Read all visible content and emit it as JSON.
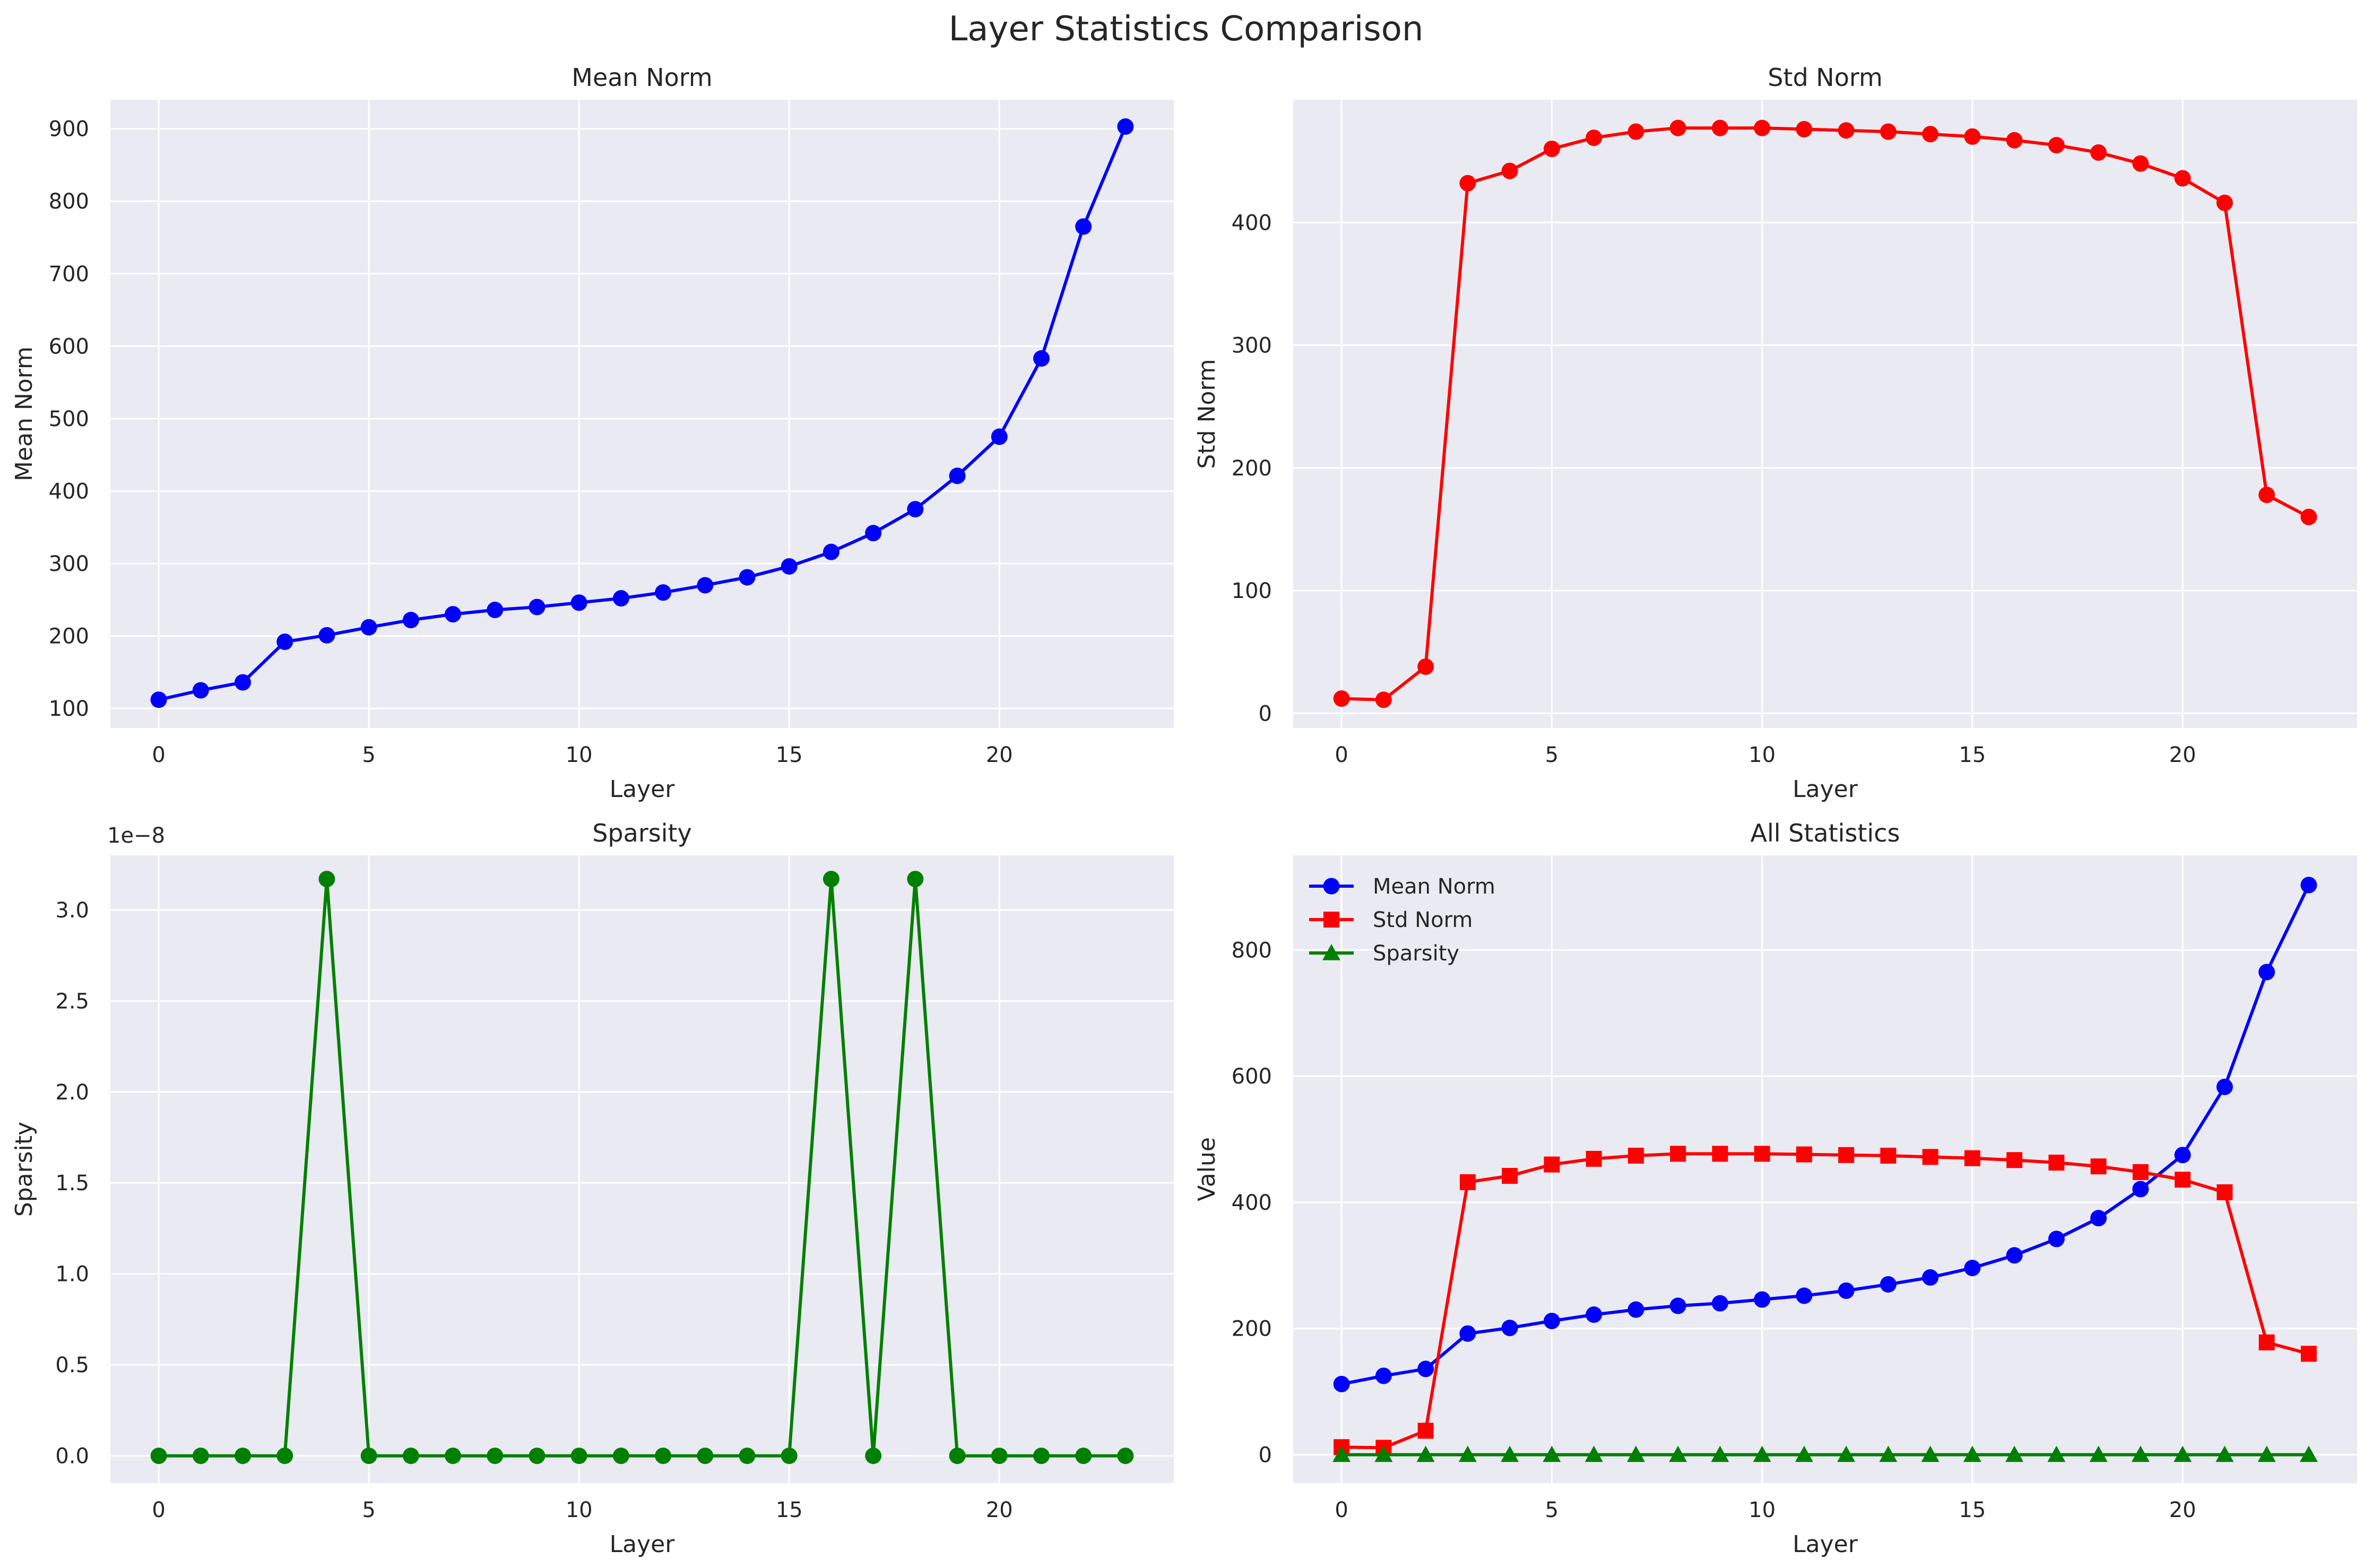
{
  "figure": {
    "title": "Layer Statistics Comparison"
  },
  "colors": {
    "blue": "#0000ff",
    "red": "#ff0000",
    "green": "#008000",
    "panel_bg": "#eaeaf2",
    "grid": "#ffffff"
  },
  "chart_data": [
    {
      "type": "line",
      "title": "Mean Norm",
      "xlabel": "Layer",
      "ylabel": "Mean Norm",
      "xlim": [
        -1.15,
        24.15
      ],
      "ylim": [
        73,
        940
      ],
      "xticks": [
        0,
        5,
        10,
        15,
        20
      ],
      "yticks": [
        100,
        200,
        300,
        400,
        500,
        600,
        700,
        800,
        900
      ],
      "ytick_labels": [
        "100",
        "200",
        "300",
        "400",
        "500",
        "600",
        "700",
        "800",
        "900"
      ],
      "grid": true,
      "series": [
        {
          "color": "#0000ff",
          "marker": "circle",
          "x": [
            0,
            1,
            2,
            3,
            4,
            5,
            6,
            7,
            8,
            9,
            10,
            11,
            12,
            13,
            14,
            15,
            16,
            17,
            18,
            19,
            20,
            21,
            22,
            23
          ],
          "y": [
            112,
            125,
            136,
            192,
            201,
            212,
            222,
            230,
            236,
            240,
            246,
            252,
            260,
            270,
            281,
            296,
            316,
            342,
            375,
            421,
            475,
            583,
            765,
            903
          ]
        }
      ]
    },
    {
      "type": "line",
      "title": "Std Norm",
      "xlabel": "Layer",
      "ylabel": "Std Norm",
      "xlim": [
        -1.15,
        24.15
      ],
      "ylim": [
        -12,
        500
      ],
      "xticks": [
        0,
        5,
        10,
        15,
        20
      ],
      "yticks": [
        0,
        100,
        200,
        300,
        400
      ],
      "ytick_labels": [
        "0",
        "100",
        "200",
        "300",
        "400"
      ],
      "grid": true,
      "series": [
        {
          "color": "#ff0000",
          "marker": "circle",
          "x": [
            0,
            1,
            2,
            3,
            4,
            5,
            6,
            7,
            8,
            9,
            10,
            11,
            12,
            13,
            14,
            15,
            16,
            17,
            18,
            19,
            20,
            21,
            22,
            23
          ],
          "y": [
            12,
            11,
            38,
            432,
            442,
            460,
            469,
            474,
            477,
            477,
            477,
            476,
            475,
            474,
            472,
            470,
            467,
            463,
            457,
            448,
            436,
            416,
            178,
            160
          ]
        }
      ]
    },
    {
      "type": "line",
      "title": "Sparsity",
      "xlabel": "Layer",
      "ylabel": "Sparsity",
      "offset_label": "1e−8",
      "xlim": [
        -1.15,
        24.15
      ],
      "ylim": [
        -0.15,
        3.3
      ],
      "y_scale_note": "values in units of 1e-8",
      "xticks": [
        0,
        5,
        10,
        15,
        20
      ],
      "yticks": [
        0,
        0.5,
        1.0,
        1.5,
        2.0,
        2.5,
        3.0
      ],
      "ytick_labels": [
        "0.0",
        "0.5",
        "1.0",
        "1.5",
        "2.0",
        "2.5",
        "3.0"
      ],
      "grid": true,
      "series": [
        {
          "color": "#008000",
          "marker": "circle",
          "x": [
            0,
            1,
            2,
            3,
            4,
            5,
            6,
            7,
            8,
            9,
            10,
            11,
            12,
            13,
            14,
            15,
            16,
            17,
            18,
            19,
            20,
            21,
            22,
            23
          ],
          "y": [
            0,
            0,
            0,
            0,
            3.17,
            0,
            0,
            0,
            0,
            0,
            0,
            0,
            0,
            0,
            0,
            0,
            3.17,
            0,
            3.17,
            0,
            0,
            0,
            0,
            0
          ]
        }
      ]
    },
    {
      "type": "line",
      "title": "All Statistics",
      "xlabel": "Layer",
      "ylabel": "Value",
      "xlim": [
        -1.15,
        24.15
      ],
      "ylim": [
        -45,
        950
      ],
      "xticks": [
        0,
        5,
        10,
        15,
        20
      ],
      "yticks": [
        0,
        200,
        400,
        600,
        800
      ],
      "ytick_labels": [
        "0",
        "200",
        "400",
        "600",
        "800"
      ],
      "grid": true,
      "legend": "top-left",
      "series": [
        {
          "name": "Mean Norm",
          "color": "#0000ff",
          "marker": "circle",
          "x": [
            0,
            1,
            2,
            3,
            4,
            5,
            6,
            7,
            8,
            9,
            10,
            11,
            12,
            13,
            14,
            15,
            16,
            17,
            18,
            19,
            20,
            21,
            22,
            23
          ],
          "y": [
            112,
            125,
            136,
            192,
            201,
            212,
            222,
            230,
            236,
            240,
            246,
            252,
            260,
            270,
            281,
            296,
            316,
            342,
            375,
            421,
            475,
            583,
            765,
            903
          ]
        },
        {
          "name": "Std Norm",
          "color": "#ff0000",
          "marker": "square",
          "x": [
            0,
            1,
            2,
            3,
            4,
            5,
            6,
            7,
            8,
            9,
            10,
            11,
            12,
            13,
            14,
            15,
            16,
            17,
            18,
            19,
            20,
            21,
            22,
            23
          ],
          "y": [
            12,
            11,
            38,
            432,
            442,
            460,
            469,
            474,
            477,
            477,
            477,
            476,
            475,
            474,
            472,
            470,
            467,
            463,
            457,
            448,
            436,
            416,
            178,
            160
          ]
        },
        {
          "name": "Sparsity",
          "color": "#008000",
          "marker": "triangle",
          "x": [
            0,
            1,
            2,
            3,
            4,
            5,
            6,
            7,
            8,
            9,
            10,
            11,
            12,
            13,
            14,
            15,
            16,
            17,
            18,
            19,
            20,
            21,
            22,
            23
          ],
          "y": [
            0,
            0,
            0,
            0,
            0,
            0,
            0,
            0,
            0,
            0,
            0,
            0,
            0,
            0,
            0,
            0,
            0,
            0,
            0,
            0,
            0,
            0,
            0,
            0
          ]
        }
      ]
    }
  ]
}
